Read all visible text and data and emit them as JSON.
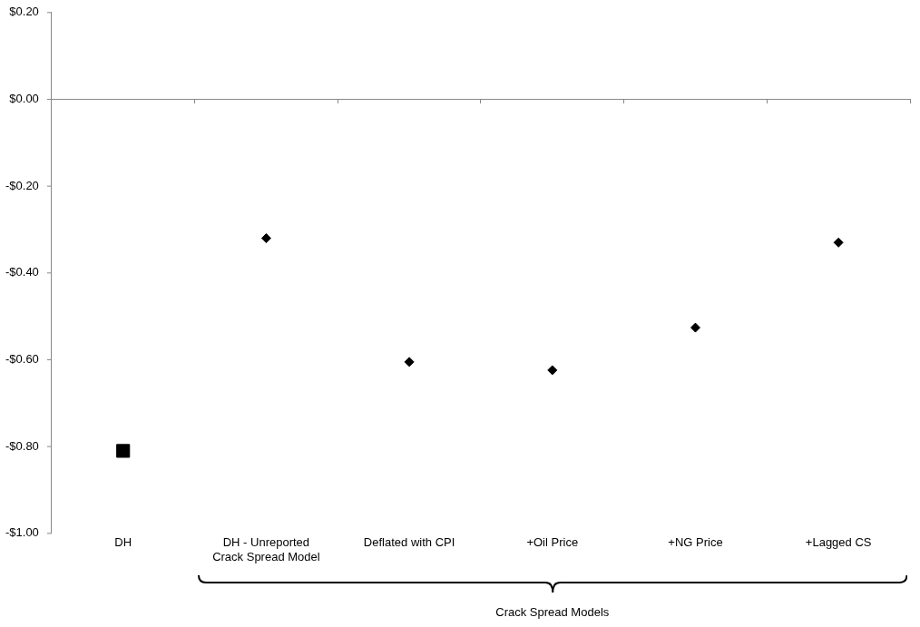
{
  "chart_data": {
    "type": "scatter",
    "categories": [
      "DH",
      "DH - Unreported Crack Spread Model",
      "Deflated with CPI",
      "+Oil Price",
      "+NG Price",
      "+Lagged CS"
    ],
    "series": [
      {
        "color": "#000000",
        "marker": "square",
        "values": [
          -0.81,
          null,
          null,
          null,
          null,
          null
        ]
      },
      {
        "color": "#000000",
        "marker": "diamond",
        "values": [
          null,
          -0.32,
          -0.605,
          -0.624,
          -0.526,
          -0.33
        ]
      }
    ],
    "ylim": [
      -1.0,
      0.2
    ],
    "yticks": [
      {
        "value": 0.2,
        "label": "$0.20"
      },
      {
        "value": 0,
        "label": "$0.00"
      },
      {
        "value": -0.2,
        "label": "-$0.20"
      },
      {
        "value": -0.4,
        "label": "-$0.40"
      },
      {
        "value": -0.6,
        "label": "-$0.60"
      },
      {
        "value": -0.8,
        "label": "-$0.80"
      },
      {
        "value": -1.0,
        "label": "-$1.00"
      }
    ],
    "ref_lines": [
      {
        "axis": "y",
        "value": 0,
        "color": "#888888"
      }
    ],
    "grid": false,
    "legend": false,
    "annotations": [
      "Crack Spread Models"
    ]
  }
}
